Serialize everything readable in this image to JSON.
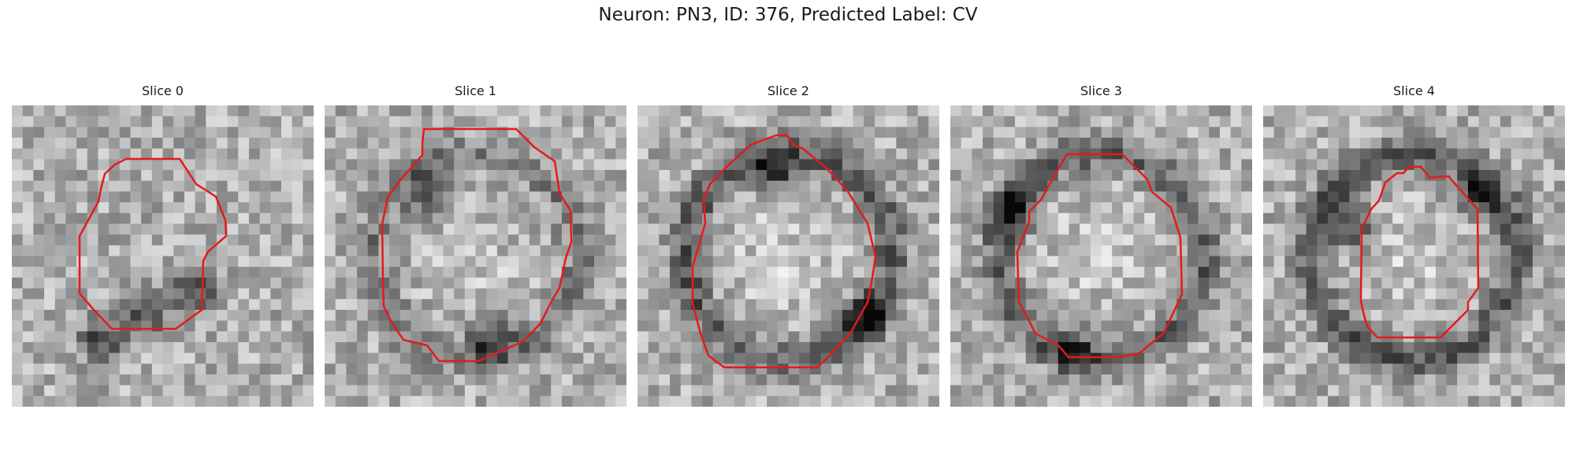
{
  "figure": {
    "title": "Neuron: PN3, ID: 376, Predicted Label: CV"
  },
  "panels": [
    {
      "title": "Slice 0",
      "contour_color": "#e41a1c",
      "dark_blobs": [
        [
          0.45,
          0.68
        ],
        [
          0.6,
          0.62
        ],
        [
          0.3,
          0.78
        ]
      ],
      "ring": 0.0
    },
    {
      "title": "Slice 1",
      "contour_color": "#e41a1c",
      "dark_blobs": [
        [
          0.55,
          0.78
        ],
        [
          0.35,
          0.3
        ]
      ],
      "ring": 0.6
    },
    {
      "title": "Slice 2",
      "contour_color": "#e41a1c",
      "dark_blobs": [
        [
          0.45,
          0.22
        ],
        [
          0.75,
          0.7
        ]
      ],
      "ring": 1.0
    },
    {
      "title": "Slice 3",
      "contour_color": "#e41a1c",
      "dark_blobs": [
        [
          0.2,
          0.35
        ],
        [
          0.4,
          0.82
        ]
      ],
      "ring": 0.9
    },
    {
      "title": "Slice 4",
      "contour_color": "#e41a1c",
      "dark_blobs": [
        [
          0.3,
          0.4
        ],
        [
          0.7,
          0.3
        ]
      ],
      "ring": 1.0
    }
  ]
}
